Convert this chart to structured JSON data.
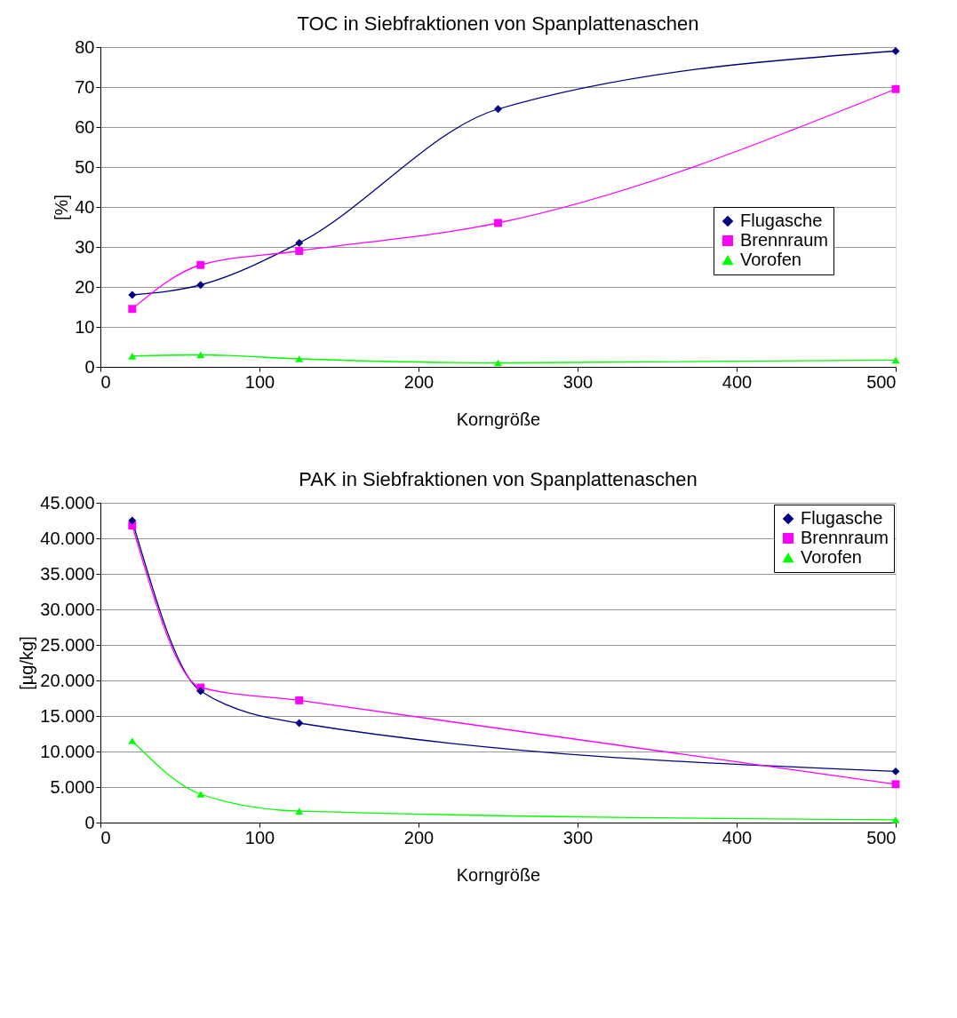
{
  "chart_data": [
    {
      "type": "line",
      "title": "TOC in Siebfraktionen von Spanplattenaschen",
      "xlabel": "Korngröße",
      "ylabel": "[%]",
      "x": [
        20,
        63,
        125,
        250,
        500
      ],
      "series": [
        {
          "name": "Flugasche",
          "color": "#000080",
          "marker": "diamond",
          "values": [
            18,
            20.5,
            31,
            64.5,
            79
          ]
        },
        {
          "name": "Brennraum",
          "color": "#ff00ff",
          "marker": "square",
          "values": [
            14.5,
            25.5,
            29,
            36,
            69.5
          ]
        },
        {
          "name": "Vorofen",
          "color": "#00ff00",
          "marker": "triangle",
          "values": [
            2.7,
            3,
            2,
            1,
            1.7
          ]
        }
      ],
      "xlim": [
        0,
        500
      ],
      "xticks": [
        0,
        100,
        200,
        300,
        400,
        500
      ],
      "ylim": [
        0,
        80
      ],
      "yticks": [
        0,
        10,
        20,
        30,
        40,
        50,
        60,
        70,
        80
      ],
      "grid": "y",
      "legend": "right",
      "line_style": "solid"
    },
    {
      "type": "line",
      "title": "PAK in Siebfraktionen von Spanplattenaschen",
      "xlabel": "Korngröße",
      "ylabel": "[µg/kg]",
      "x": [
        20,
        63,
        125,
        500
      ],
      "series": [
        {
          "name": "Flugasche",
          "color": "#000080",
          "marker": "diamond",
          "values": [
            42500,
            18500,
            14000,
            7200
          ]
        },
        {
          "name": "Brennraum",
          "color": "#ff00ff",
          "marker": "square",
          "values": [
            41800,
            19000,
            17200,
            5400
          ]
        },
        {
          "name": "Vorofen",
          "color": "#00ff00",
          "marker": "triangle",
          "values": [
            11500,
            4000,
            1600,
            400
          ]
        }
      ],
      "xlim": [
        0,
        500
      ],
      "xticks": [
        0,
        100,
        200,
        300,
        400,
        500
      ],
      "ylim": [
        0,
        45000
      ],
      "yticks": [
        {
          "value": 0,
          "label": "0"
        },
        {
          "value": 5000,
          "label": "5.000"
        },
        {
          "value": 10000,
          "label": "10.000"
        },
        {
          "value": 15000,
          "label": "15.000"
        },
        {
          "value": 20000,
          "label": "20.000"
        },
        {
          "value": 25000,
          "label": "25.000"
        },
        {
          "value": 30000,
          "label": "30.000"
        },
        {
          "value": 35000,
          "label": "35.000"
        },
        {
          "value": 40000,
          "label": "40.000"
        },
        {
          "value": 45000,
          "label": "45.000"
        }
      ],
      "grid": "y",
      "legend": "top right",
      "line_style": "solid"
    }
  ]
}
